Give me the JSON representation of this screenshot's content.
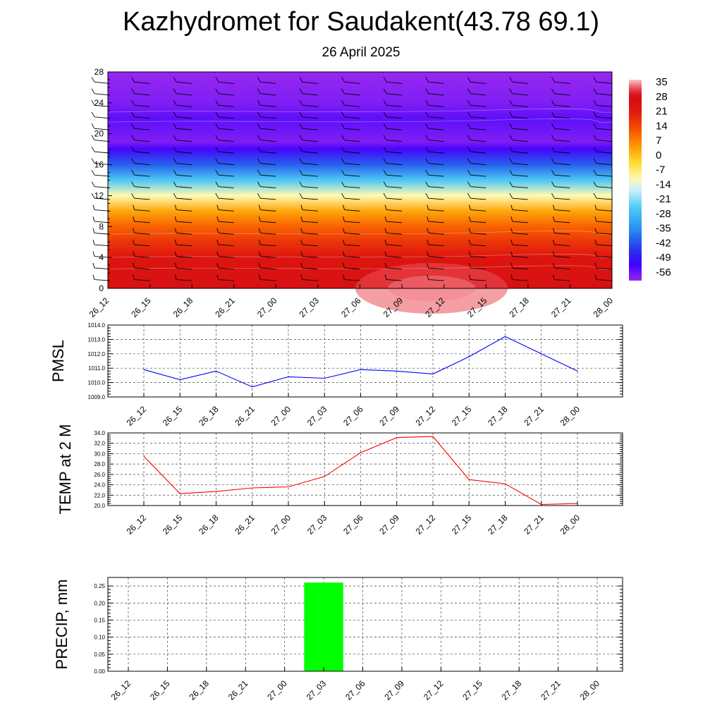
{
  "title": "Kazhydromet for Saudakent(43.78 69.1)",
  "subtitle": "26 April 2025",
  "chart_data": [
    {
      "type": "heatmap",
      "name": "temperature-cross-section",
      "x_ticks": [
        "26_12",
        "26_15",
        "26_18",
        "26_21",
        "27_00",
        "27_03",
        "27_06",
        "27_09",
        "27_12",
        "27_15",
        "27_18",
        "27_21",
        "28_00"
      ],
      "y_ticks": [
        "0",
        "4",
        "8",
        "12",
        "16",
        "20",
        "24",
        "28"
      ],
      "ylim": [
        0,
        28
      ],
      "colorbar_labels": [
        "35",
        "28",
        "21",
        "14",
        "7",
        "0",
        "-7",
        "-14",
        "-21",
        "-28",
        "-35",
        "-42",
        "-49",
        "-56"
      ],
      "colorbar_range": [
        -60,
        38
      ],
      "temperature_profile": [
        {
          "level": 0,
          "value": 27
        },
        {
          "level": 4,
          "value": 24
        },
        {
          "level": 6,
          "value": 18
        },
        {
          "level": 8,
          "value": 12
        },
        {
          "level": 10,
          "value": 4
        },
        {
          "level": 12,
          "value": -10
        },
        {
          "level": 14,
          "value": -25
        },
        {
          "level": 16,
          "value": -40
        },
        {
          "level": 18,
          "value": -53
        },
        {
          "level": 19,
          "value": -58
        },
        {
          "level": 21,
          "value": -56
        },
        {
          "level": 22,
          "value": -55
        },
        {
          "level": 24,
          "value": -58
        },
        {
          "level": 28,
          "value": -60
        }
      ],
      "wind_barbs": true
    },
    {
      "type": "line",
      "name": "pmsl",
      "ylabel": "PMSL",
      "categories": [
        "26_12",
        "26_15",
        "26_18",
        "26_21",
        "27_00",
        "27_03",
        "27_06",
        "27_09",
        "27_12",
        "27_15",
        "27_18",
        "27_21",
        "28_00"
      ],
      "values": [
        1010.9,
        1010.2,
        1010.8,
        1009.7,
        1010.4,
        1010.3,
        1010.9,
        1010.8,
        1010.6,
        1011.8,
        1013.2,
        1012.0,
        1010.8
      ],
      "ylim": [
        1009.0,
        1014.0
      ],
      "y_ticks": [
        "1009.0",
        "1010.0",
        "1011.0",
        "1012.0",
        "1013.0",
        "1014.0"
      ],
      "color": "#0000ff",
      "grid": true
    },
    {
      "type": "line",
      "name": "temp2m",
      "ylabel": "TEMP at 2 M",
      "categories": [
        "26_12",
        "26_15",
        "26_18",
        "26_21",
        "27_00",
        "27_03",
        "27_06",
        "27_09",
        "27_12",
        "27_15",
        "27_18",
        "27_21",
        "28_00"
      ],
      "values": [
        29.5,
        22.3,
        22.7,
        23.4,
        23.6,
        25.6,
        30.2,
        33.1,
        33.3,
        25.0,
        24.2,
        20.2,
        20.4
      ],
      "ylim": [
        20.0,
        34.0
      ],
      "y_ticks": [
        "20.0",
        "22.0",
        "24.0",
        "26.0",
        "28.0",
        "30.0",
        "32.0",
        "34.0"
      ],
      "color": "#ff0000",
      "grid": true
    },
    {
      "type": "bar",
      "name": "precip",
      "ylabel": "PRECIP, mm",
      "categories": [
        "26_12",
        "26_15",
        "26_18",
        "26_21",
        "27_00",
        "27_03",
        "27_06",
        "27_09",
        "27_12",
        "27_15",
        "27_18",
        "27_21",
        "28_00"
      ],
      "values": [
        0,
        0,
        0,
        0,
        0,
        0.26,
        0,
        0,
        0,
        0,
        0,
        0,
        0
      ],
      "ylim": [
        0,
        0.275
      ],
      "y_ticks": [
        "0.00",
        "0.05",
        "0.10",
        "0.15",
        "0.20",
        "0.25"
      ],
      "color": "#00ff00",
      "grid": true
    }
  ]
}
